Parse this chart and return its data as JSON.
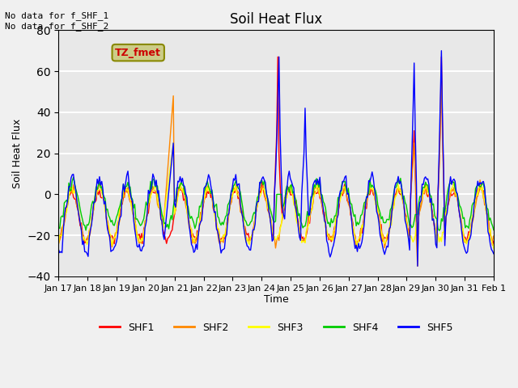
{
  "title": "Soil Heat Flux",
  "ylabel": "Soil Heat Flux",
  "xlabel": "Time",
  "annotation_top": "No data for f_SHF_1\nNo data for f_SHF_2",
  "legend_label": "TZ_fmet",
  "ylim": [
    -40,
    80
  ],
  "series_colors": {
    "SHF1": "#ff0000",
    "SHF2": "#ff8800",
    "SHF3": "#ffff00",
    "SHF4": "#00cc00",
    "SHF5": "#0000ff"
  },
  "series_labels": [
    "SHF1",
    "SHF2",
    "SHF3",
    "SHF4",
    "SHF5"
  ],
  "x_tick_labels": [
    "Jan 17",
    "Jan 18",
    "Jan 19",
    "Jan 20",
    "Jan 21",
    "Jan 22",
    "Jan 23",
    "Jan 24",
    "Jan 25",
    "Jan 26",
    "Jan 27",
    "Jan 28",
    "Jan 29",
    "Jan 30",
    "Jan 31",
    "Feb 1"
  ],
  "background_color": "#e8e8e8",
  "grid_color": "#ffffff",
  "box_color": "#cccc88",
  "box_text_color": "#cc0000"
}
